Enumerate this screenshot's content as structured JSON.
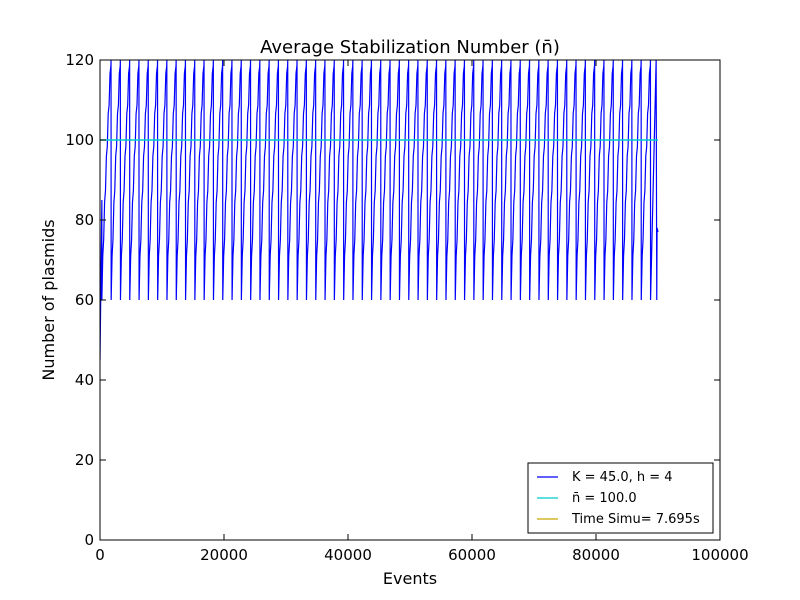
{
  "chart_data": {
    "type": "line",
    "title": "Average Stabilization Number (n̄)",
    "xlabel": "Events",
    "ylabel": "Number of plasmids",
    "xlim": [
      0,
      100000
    ],
    "ylim": [
      0,
      120
    ],
    "xticks": [
      0,
      20000,
      40000,
      60000,
      80000,
      100000
    ],
    "yticks": [
      0,
      20,
      40,
      60,
      80,
      100,
      120
    ],
    "grid": false,
    "legend_position": "lower-right",
    "series": [
      {
        "name": "K = 45.0, h = 4",
        "color": "#0000ff",
        "pattern": "sawtooth",
        "x_start": 0,
        "x_end": 90000,
        "cycle_period_events": 1500,
        "y_min": 60,
        "y_max": 120,
        "start_value": 45,
        "end_value": 78
      },
      {
        "name": "n̄ = 100.0",
        "color": "#00cccc",
        "x": [
          0,
          90000
        ],
        "y": [
          100,
          100
        ]
      },
      {
        "name": "Time Simu= 7.695s",
        "color": "#c8a600",
        "x": [],
        "y": []
      }
    ]
  }
}
